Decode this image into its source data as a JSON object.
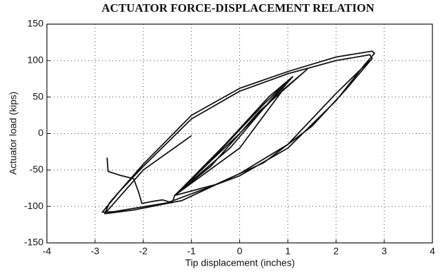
{
  "chart_data": {
    "type": "line",
    "title": "ACTUATOR FORCE-DISPLACEMENT RELATION",
    "x_label": "Tip displacement (inches)",
    "y_label": "Actuator load (kips)",
    "x": [
      -2.75,
      -2.73,
      -2.5,
      -2.2,
      -2.1,
      -2.03,
      -1.8,
      -1.6,
      -1.4,
      -1.35,
      -0.5,
      0.5,
      1.0,
      0.7,
      -0.2,
      -1.0,
      -1.3,
      -0.3,
      0.6,
      1.1,
      0.8,
      0,
      -1.35,
      -0.6,
      0.4,
      1.4,
      0.9,
      0,
      -1.35,
      -0.5,
      0.5,
      1.5,
      2.2,
      2.75,
      2.7,
      2.0,
      1.0,
      0,
      -1,
      -2,
      -2.5,
      -2.85,
      -2.6,
      -1.5,
      0,
      1.0,
      2.0,
      2.6,
      2.8,
      2.75,
      2.0,
      1.0,
      0,
      -1,
      -2,
      -2.7,
      -2.8,
      -2.2,
      -1.2,
      0,
      1.0,
      2.0,
      2.7,
      null,
      -2.8,
      -2.0,
      -1.0
    ],
    "values": [
      -33,
      -52,
      -57,
      -62,
      -80,
      -96,
      -93,
      -91,
      -95,
      -85,
      -30,
      40,
      72,
      50,
      -20,
      -65,
      -82,
      -15,
      50,
      78,
      55,
      0,
      -85,
      -45,
      30,
      88,
      60,
      -20,
      -85,
      -70,
      -40,
      10,
      60,
      103,
      108,
      100,
      82,
      58,
      20,
      -45,
      -80,
      -108,
      -107,
      -95,
      -58,
      -20,
      45,
      95,
      110,
      113,
      105,
      85,
      62,
      25,
      -42,
      -95,
      -110,
      -105,
      -92,
      -55,
      -15,
      55,
      100,
      null,
      -110,
      -50,
      -3
    ],
    "color": "#111111",
    "xlim": [
      -4,
      4
    ],
    "xticks": [
      -4,
      -3,
      -2,
      -1,
      0,
      1,
      2,
      3,
      4
    ],
    "ylim": [
      -150,
      150
    ],
    "yticks": [
      -150,
      -100,
      -50,
      0,
      50,
      100,
      150
    ],
    "grid": true
  }
}
